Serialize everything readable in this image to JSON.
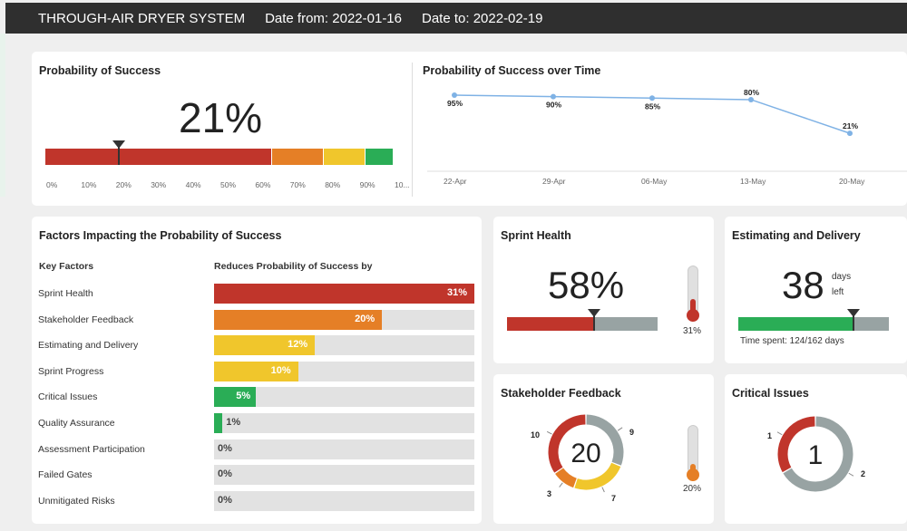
{
  "header": {
    "system": "THROUGH-AIR DRYER SYSTEM",
    "date_from": "Date from: 2022-01-16",
    "date_to": "Date to: 2022-02-19"
  },
  "probability": {
    "title": "Probability of Success",
    "value": "21%",
    "marker_percent": 21,
    "ticks": [
      "0%",
      "10%",
      "20%",
      "30%",
      "40%",
      "50%",
      "60%",
      "70%",
      "80%",
      "90%",
      "10..."
    ],
    "segments": [
      {
        "from": 0,
        "to": 65,
        "color": "#c0352b"
      },
      {
        "from": 65,
        "to": 80,
        "color": "#e57f26"
      },
      {
        "from": 80,
        "to": 92,
        "color": "#f0c62c"
      },
      {
        "from": 92,
        "to": 100,
        "color": "#2aad56"
      }
    ]
  },
  "chart_data": {
    "type": "line",
    "title": "Probability of Success over Time",
    "categories": [
      "22-Apr",
      "29-Apr",
      "06-May",
      "13-May",
      "20-May"
    ],
    "values": [
      95,
      90,
      85,
      80,
      21
    ],
    "labels": [
      "95%",
      "90%",
      "85%",
      "80%",
      "21%"
    ],
    "ylim": [
      0,
      100
    ]
  },
  "factors": {
    "title": "Factors Impacting the Probability of Success",
    "col_key": "Key Factors",
    "col_reduces": "Reduces Probability of Success by",
    "items": [
      {
        "name": "Sprint Health",
        "value": 31,
        "label": "31%",
        "color": "#c0352b"
      },
      {
        "name": "Stakeholder Feedback",
        "value": 20,
        "label": "20%",
        "color": "#e57f26"
      },
      {
        "name": "Estimating and Delivery",
        "value": 12,
        "label": "12%",
        "color": "#f0c62c"
      },
      {
        "name": "Sprint Progress",
        "value": 10,
        "label": "10%",
        "color": "#f0c62c"
      },
      {
        "name": "Critical Issues",
        "value": 5,
        "label": "5%",
        "color": "#2aad56"
      },
      {
        "name": "Quality Assurance",
        "value": 1,
        "label": "1%",
        "color": "#2aad56"
      },
      {
        "name": "Assessment Participation",
        "value": 0,
        "label": "0%",
        "color": "#2aad56"
      },
      {
        "name": "Failed Gates",
        "value": 0,
        "label": "0%",
        "color": "#2aad56"
      },
      {
        "name": "Unmitigated Risks",
        "value": 0,
        "label": "0%",
        "color": "#2aad56"
      }
    ]
  },
  "sprint_health": {
    "title": "Sprint Health",
    "value": "58%",
    "fill_fraction": 0.58,
    "thermo_label": "31%",
    "thermo_fraction": 0.31
  },
  "estimating": {
    "title": "Estimating and Delivery",
    "value": "38",
    "unit_top": "days",
    "unit_bottom": "left",
    "time_spent": "Time spent: 124/162 days",
    "fill_fraction": 0.765
  },
  "stakeholder": {
    "title": "Stakeholder Feedback",
    "total": "20",
    "thermo_label": "20%",
    "thermo_fraction": 0.2,
    "slices": [
      {
        "label": "9",
        "value": 9,
        "color": "#98a3a3"
      },
      {
        "label": "7",
        "value": 7,
        "color": "#f0c62c"
      },
      {
        "label": "3",
        "value": 3,
        "color": "#e57f26"
      },
      {
        "label": "10",
        "value": 10,
        "color": "#c0352b"
      }
    ]
  },
  "critical": {
    "title": "Critical Issues",
    "total": "1",
    "slices": [
      {
        "label": "1",
        "value": 1,
        "color": "#c0352b"
      },
      {
        "label": "2",
        "value": 2,
        "color": "#98a3a3"
      }
    ]
  }
}
